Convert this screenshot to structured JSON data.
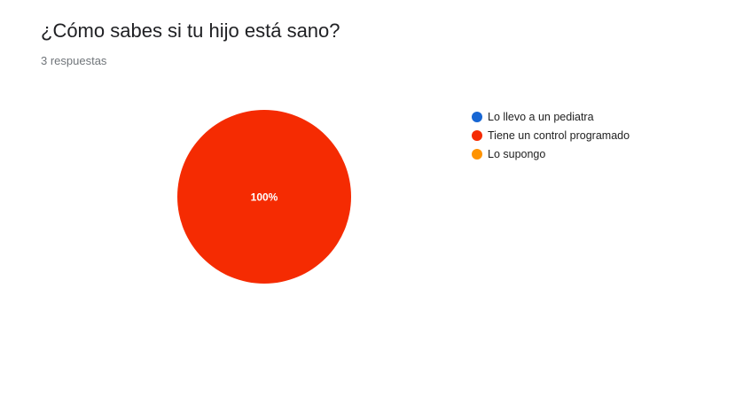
{
  "question": {
    "title": "¿Cómo sabes si tu hijo está sano?",
    "responses": "3 respuestas"
  },
  "chart_data": {
    "type": "pie",
    "categories": [
      "Lo llevo a un pediatra",
      "Tiene un control programado",
      "Lo supongo"
    ],
    "values": [
      0,
      3,
      0
    ],
    "slice_labels": [
      "",
      "100%",
      ""
    ],
    "colors": [
      "#1766d3",
      "#f52b02",
      "#ff9300"
    ],
    "legend": {
      "position": "right",
      "entries": [
        "Lo llevo a un pediatra",
        "Tiene un control programado",
        "Lo supongo"
      ]
    }
  }
}
